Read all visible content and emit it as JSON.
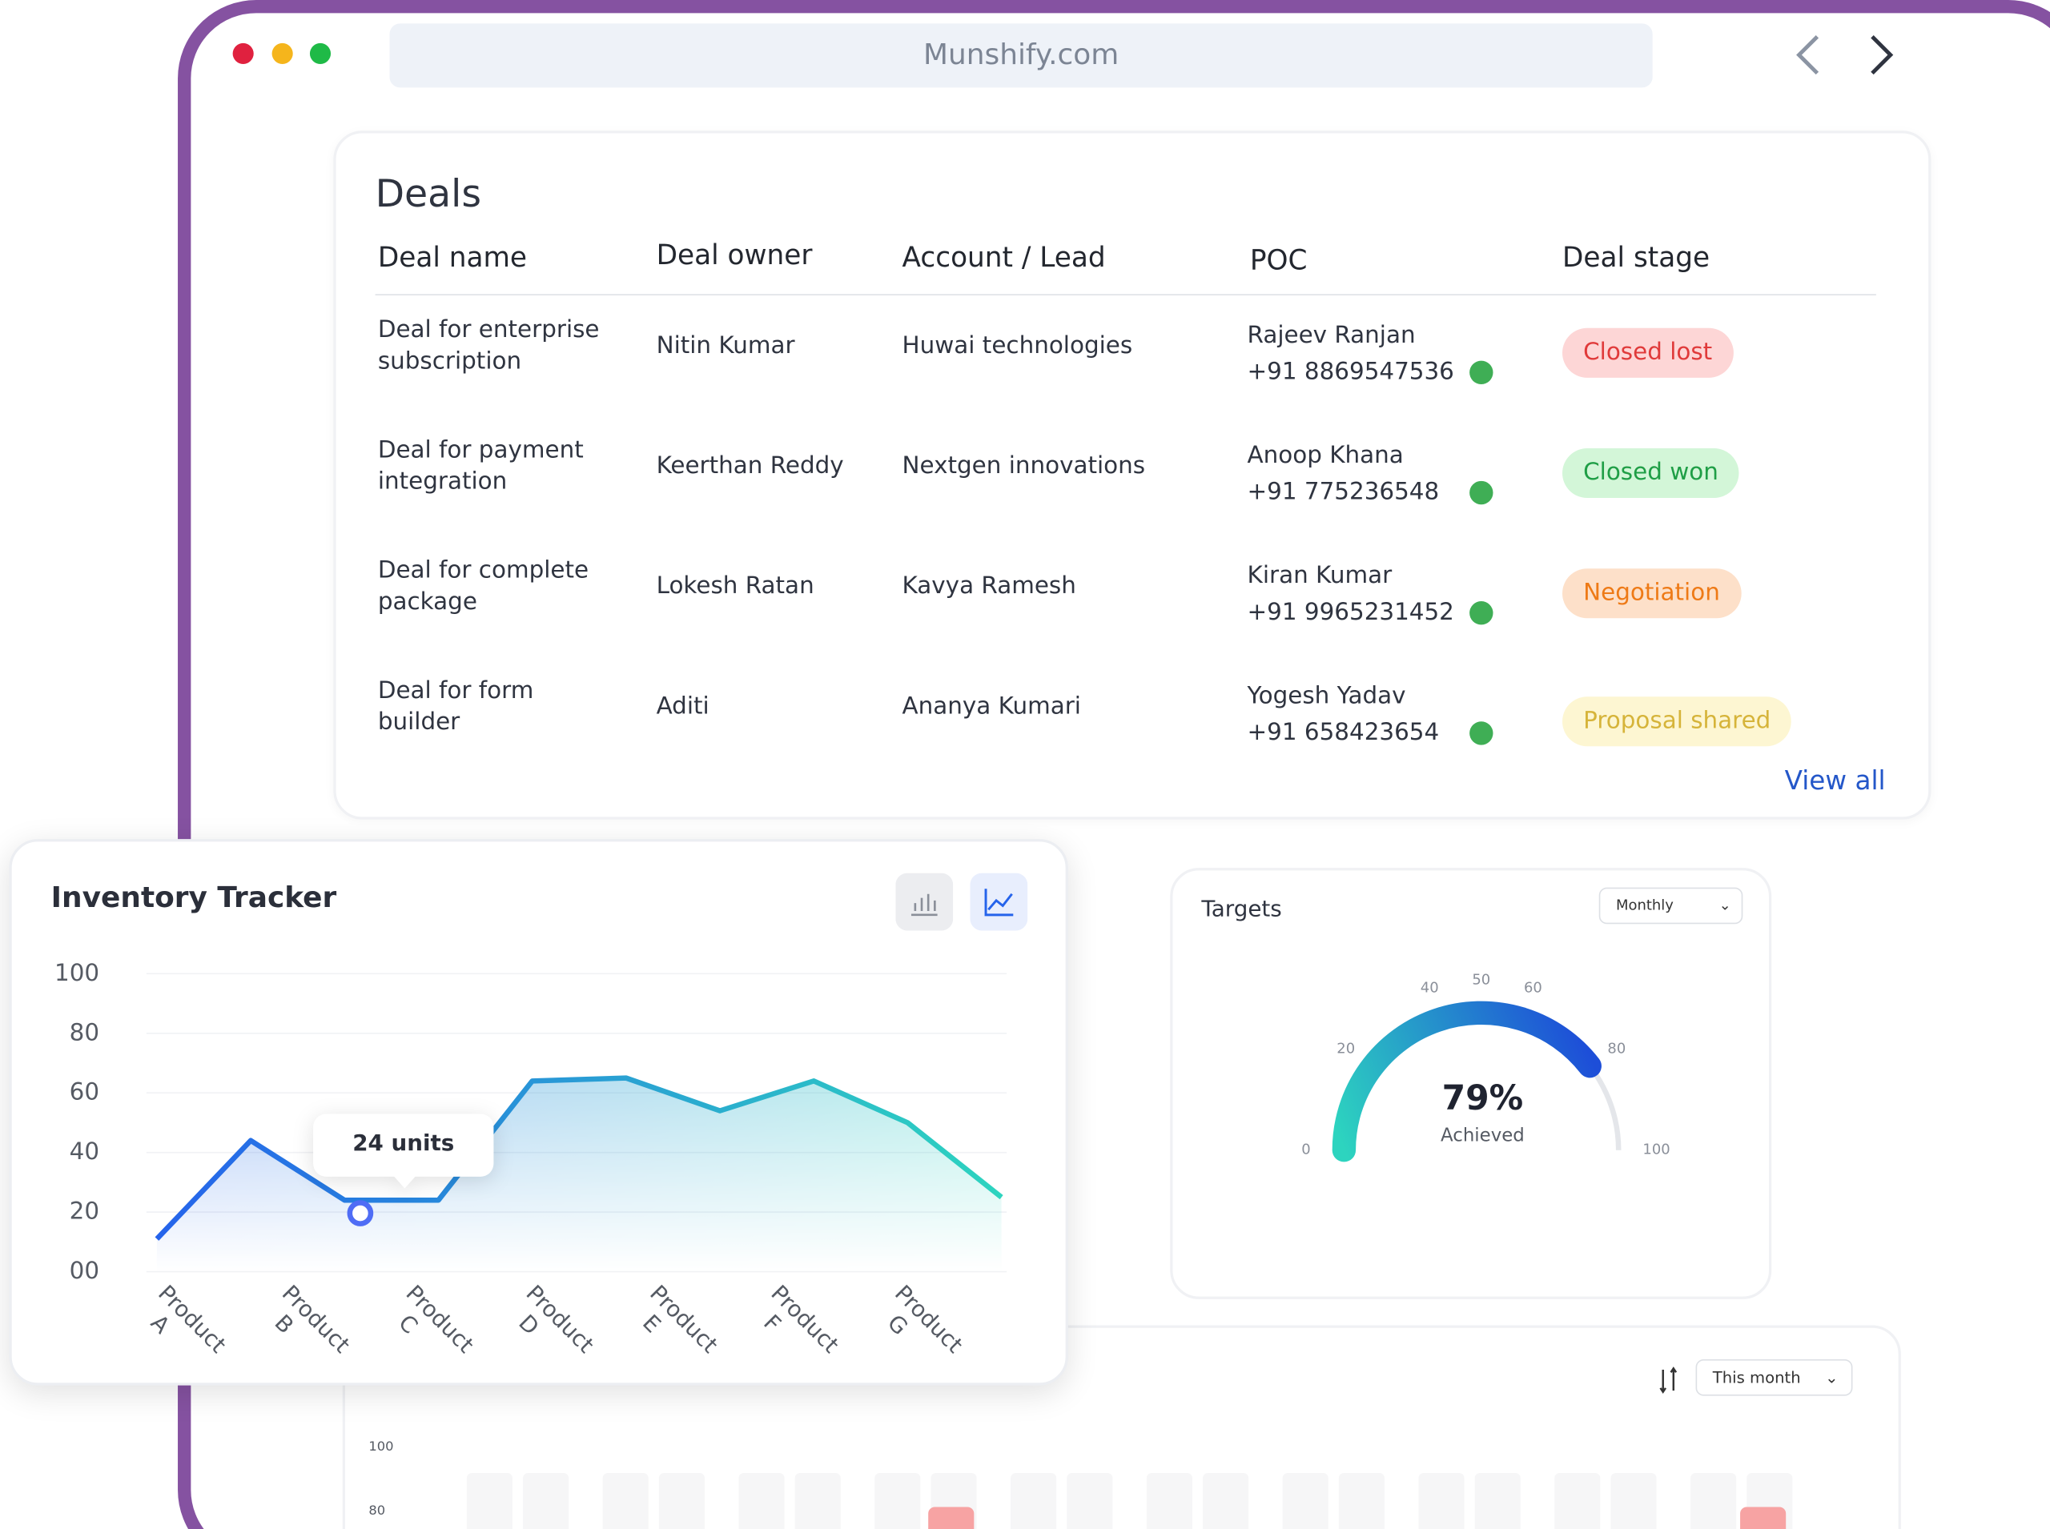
{
  "browser": {
    "url": "Munshify.com"
  },
  "deals": {
    "title": "Deals",
    "columns": [
      "Deal name",
      "Deal owner",
      "Account / Lead",
      "POC",
      "Deal stage"
    ],
    "rows": [
      {
        "name": "Deal for enterprise subscription",
        "owner": "Nitin Kumar",
        "account": "Huwai technologies",
        "poc_name": "Rajeev Ranjan",
        "poc_phone": "+91 8869547536",
        "stage": "Closed lost",
        "stage_color": "#e03a3a",
        "stage_bg": "#fdd6d6"
      },
      {
        "name": "Deal for payment integration",
        "owner": "Keerthan Reddy",
        "account": "Nextgen innovations",
        "poc_name": "Anoop Khana",
        "poc_phone": "+91 775236548",
        "stage": "Closed won",
        "stage_color": "#1f9e46",
        "stage_bg": "#d3f6d8"
      },
      {
        "name": "Deal for complete package",
        "owner": "Lokesh Ratan",
        "account": "Kavya Ramesh",
        "poc_name": "Kiran Kumar",
        "poc_phone": "+91 9965231452",
        "stage": "Negotiation",
        "stage_color": "#ee7a16",
        "stage_bg": "#fde0c9"
      },
      {
        "name": "Deal for form builder",
        "owner": "Aditi",
        "account": "Ananya Kumari",
        "poc_name": "Yogesh Yadav",
        "poc_phone": "+91 658423654",
        "stage": "Proposal shared",
        "stage_color": "#d6b43a",
        "stage_bg": "#fdf6d2"
      }
    ],
    "view_all": "View all"
  },
  "chart_data": [
    {
      "type": "line",
      "title": "Inventory Tracker",
      "x": [
        0,
        1,
        2,
        3,
        4,
        5,
        6,
        7,
        8,
        9
      ],
      "values": [
        11,
        44,
        24,
        24,
        64,
        65,
        54,
        64,
        50,
        25
      ],
      "xlim": [
        0,
        9
      ],
      "xticks": [
        {
          "value": 0.44,
          "label": "Product A"
        },
        {
          "value": 1.76,
          "label": "Product B"
        },
        {
          "value": 3.08,
          "label": "Product C"
        },
        {
          "value": 4.36,
          "label": "Product D"
        },
        {
          "value": 5.68,
          "label": "Product E"
        },
        {
          "value": 6.97,
          "label": "Product F"
        },
        {
          "value": 8.29,
          "label": "Product G"
        }
      ],
      "ylim": [
        0,
        100
      ],
      "yticks": [
        {
          "value": 0,
          "label": "00"
        },
        20,
        40,
        60,
        80,
        100
      ],
      "grid": true,
      "colors": [
        "#2563eb",
        "#2dd4bf"
      ],
      "highlight": {
        "point": 2,
        "label": "24 units"
      }
    },
    {
      "type": "gauge",
      "title": "Targets",
      "filter": "Monthly",
      "value": 79,
      "value_label": "79%",
      "sublabel": "Achieved",
      "ylim": [
        0,
        100
      ],
      "yticks": [
        0,
        20,
        40,
        50,
        60,
        80,
        100
      ],
      "colors": [
        "#2dd4bf",
        "#1d4ed8"
      ]
    },
    {
      "type": "bar",
      "filter": "This month",
      "ylim": [
        0,
        100
      ],
      "yticks": [
        100,
        80
      ]
    }
  ]
}
